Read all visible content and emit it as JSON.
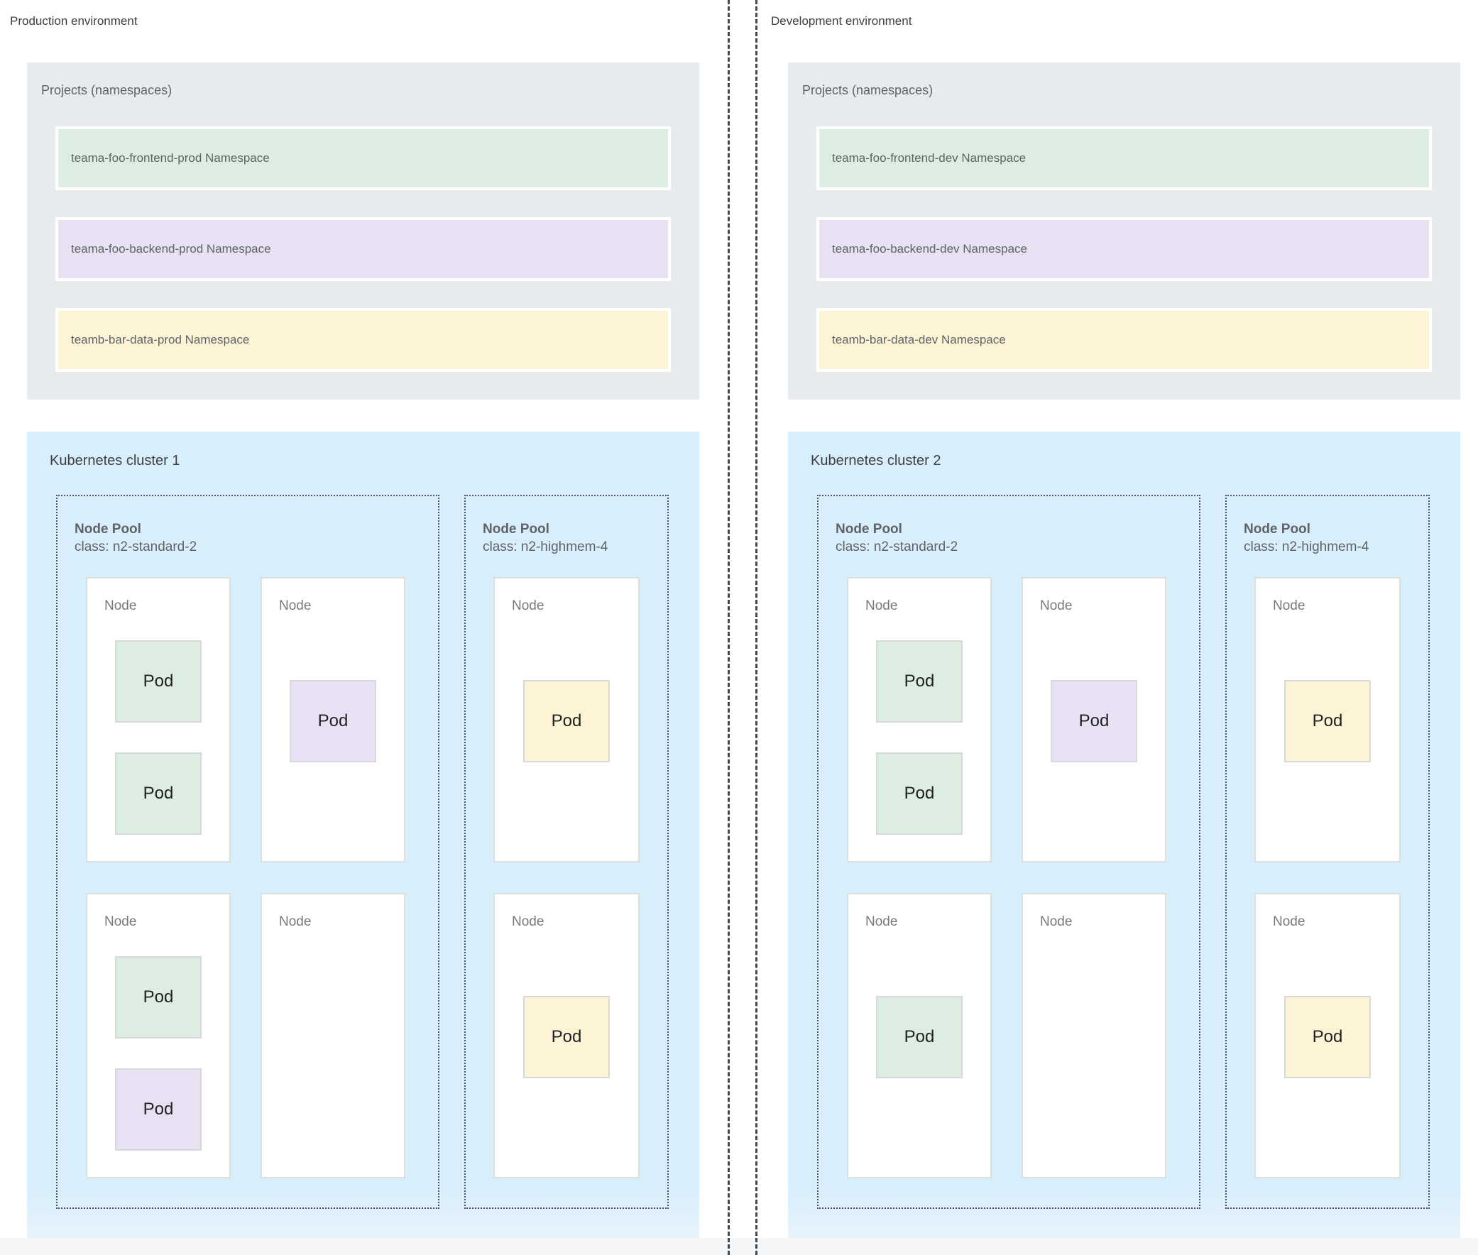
{
  "palette": {
    "namespace_green": "#ddede1",
    "namespace_purple": "#e8e1f3",
    "namespace_yellow": "#fdf4d6",
    "projects_box_gray": "#e8ebee",
    "cluster_box_blue": "#d9eefb",
    "dashed_border": "#50545a",
    "label_gray": "#5f6368",
    "title_dark": "#3c4043"
  },
  "environments": [
    {
      "label": "Production environment",
      "projects": {
        "title": "Projects (namespaces)",
        "namespaces": [
          {
            "label": "teama-foo-frontend-prod Namespace",
            "color": "green"
          },
          {
            "label": "teama-foo-backend-prod Namespace",
            "color": "purple"
          },
          {
            "label": "teamb-bar-data-prod Namespace",
            "color": "yellow"
          }
        ]
      },
      "cluster": {
        "title": "Kubernetes cluster 1",
        "pools": [
          {
            "name": "Node Pool",
            "class": "class: n2-standard-2",
            "nodes": [
              {
                "label": "Node",
                "pods": [
                  {
                    "label": "Pod",
                    "color": "green"
                  },
                  {
                    "label": "Pod",
                    "color": "green"
                  }
                ]
              },
              {
                "label": "Node",
                "pods": [
                  {
                    "label": "Pod",
                    "color": "purple"
                  }
                ]
              },
              {
                "label": "Node",
                "pods": [
                  {
                    "label": "Pod",
                    "color": "green"
                  },
                  {
                    "label": "Pod",
                    "color": "purple"
                  }
                ]
              },
              {
                "label": "Node",
                "pods": []
              }
            ]
          },
          {
            "name": "Node Pool",
            "class": "class: n2-highmem-4",
            "nodes": [
              {
                "label": "Node",
                "pods": [
                  {
                    "label": "Pod",
                    "color": "yellow"
                  }
                ]
              },
              {
                "label": "Node",
                "pods": [
                  {
                    "label": "Pod",
                    "color": "yellow"
                  }
                ]
              }
            ]
          }
        ]
      }
    },
    {
      "label": "Development environment",
      "projects": {
        "title": "Projects (namespaces)",
        "namespaces": [
          {
            "label": "teama-foo-frontend-dev Namespace",
            "color": "green"
          },
          {
            "label": "teama-foo-backend-dev Namespace",
            "color": "purple"
          },
          {
            "label": "teamb-bar-data-dev Namespace",
            "color": "yellow"
          }
        ]
      },
      "cluster": {
        "title": "Kubernetes cluster 2",
        "pools": [
          {
            "name": "Node Pool",
            "class": "class: n2-standard-2",
            "nodes": [
              {
                "label": "Node",
                "pods": [
                  {
                    "label": "Pod",
                    "color": "green"
                  },
                  {
                    "label": "Pod",
                    "color": "green"
                  }
                ]
              },
              {
                "label": "Node",
                "pods": [
                  {
                    "label": "Pod",
                    "color": "purple"
                  }
                ]
              },
              {
                "label": "Node",
                "pods": [
                  {
                    "label": "Pod",
                    "color": "green"
                  }
                ]
              },
              {
                "label": "Node",
                "pods": []
              }
            ]
          },
          {
            "name": "Node Pool",
            "class": "class: n2-highmem-4",
            "nodes": [
              {
                "label": "Node",
                "pods": [
                  {
                    "label": "Pod",
                    "color": "yellow"
                  }
                ]
              },
              {
                "label": "Node",
                "pods": [
                  {
                    "label": "Pod",
                    "color": "yellow"
                  }
                ]
              }
            ]
          }
        ]
      }
    }
  ]
}
